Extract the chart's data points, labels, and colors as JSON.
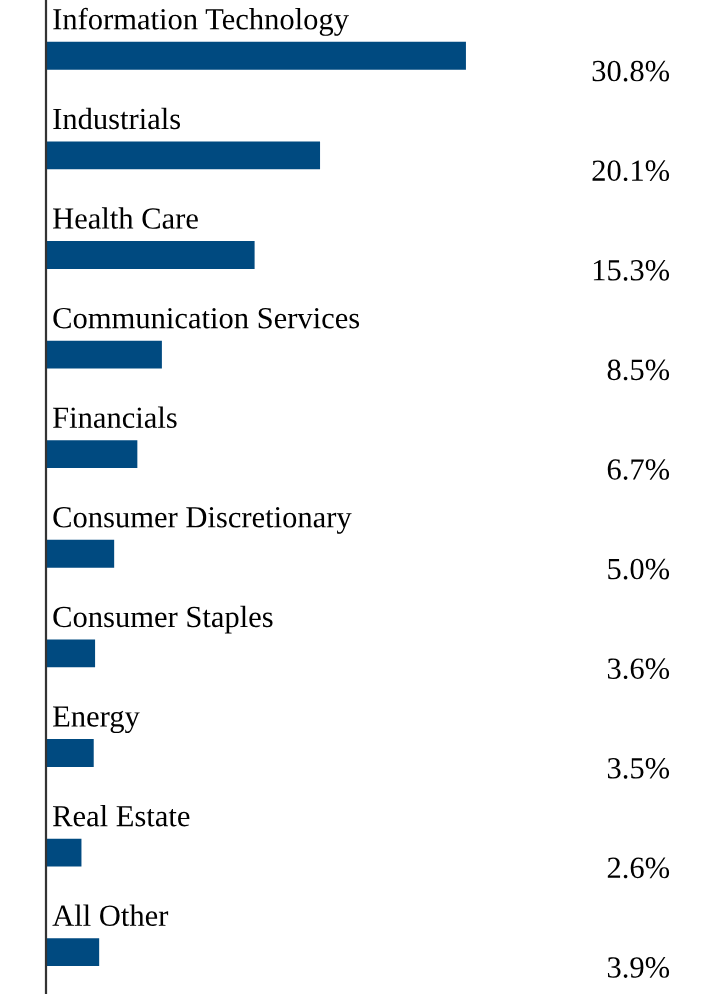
{
  "chart_data": {
    "type": "bar",
    "orientation": "horizontal",
    "categories": [
      "Information Technology",
      "Industrials",
      "Health Care",
      "Communication Services",
      "Financials",
      "Consumer Discretionary",
      "Consumer Staples",
      "Energy",
      "Real Estate",
      "All Other"
    ],
    "values": [
      30.8,
      20.1,
      15.3,
      8.5,
      6.7,
      5.0,
      3.6,
      3.5,
      2.6,
      3.9
    ],
    "value_labels": [
      "30.8%",
      "20.1%",
      "15.3%",
      "8.5%",
      "6.7%",
      "5.0%",
      "3.6%",
      "3.5%",
      "2.6%",
      "3.9%"
    ],
    "color": "#004a80"
  }
}
